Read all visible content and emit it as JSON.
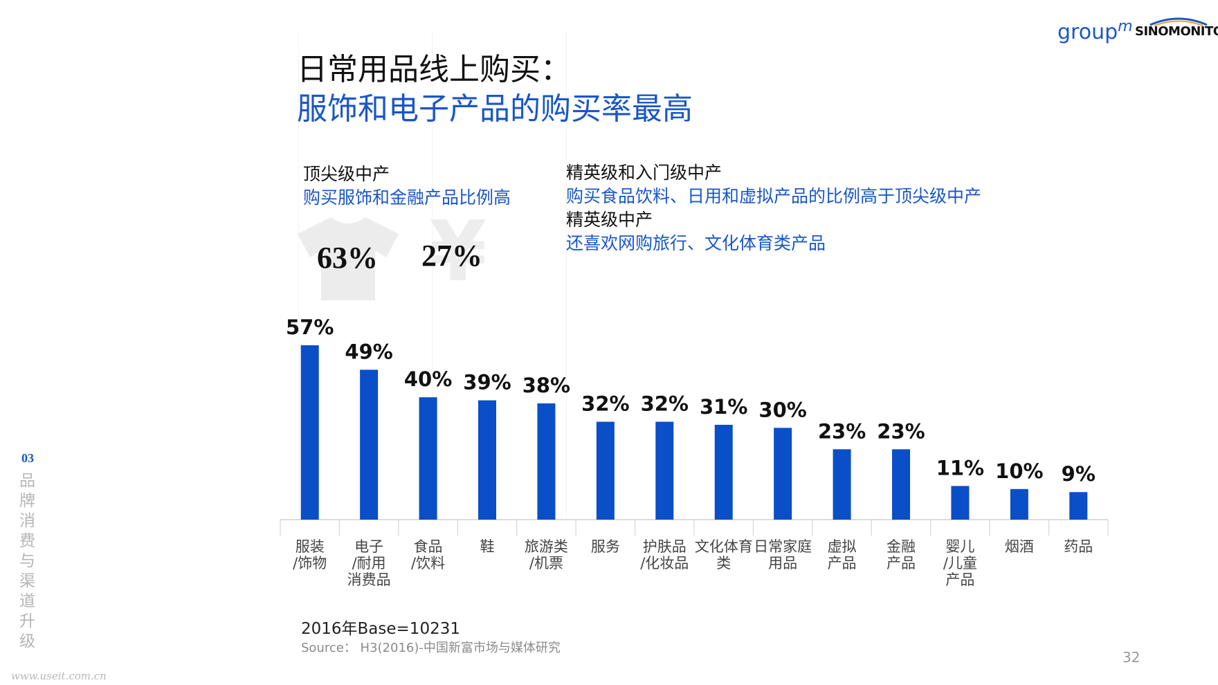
{
  "header": {
    "title_line1": "日常用品线上购买：",
    "title_line2": "服饰和电子产品的购买率最高"
  },
  "logos": {
    "groupm": "group",
    "groupm_m": "m",
    "sinomonitor": "SINOMONITOR"
  },
  "segments": {
    "left": {
      "heading": "顶尖级中产",
      "body": "购买服饰和金融产品比例高",
      "stats": [
        {
          "icon": "tshirt-icon",
          "value": "63%"
        },
        {
          "icon": "yen-icon",
          "value": "27%"
        }
      ]
    },
    "right": {
      "heading1": "精英级和入门级中产",
      "body1": "购买食品饮料、日用和虚拟产品的比例高于顶尖级中产",
      "heading2": "精英级中产",
      "body2": "还喜欢网购旅行、文化体育类产品"
    }
  },
  "colors": {
    "bar": "#0a4fc8",
    "accent_text": "#1a56c8"
  },
  "chart_data": {
    "type": "bar",
    "categories": [
      [
        "服装",
        "/饰物"
      ],
      [
        "电子",
        "/耐用",
        "消费品"
      ],
      [
        "食品",
        "/饮料"
      ],
      [
        "鞋"
      ],
      [
        "旅游类",
        "/机票"
      ],
      [
        "服务"
      ],
      [
        "护肤品",
        "/化妆品"
      ],
      [
        "文化体育",
        "类"
      ],
      [
        "日常家庭",
        "用品"
      ],
      [
        "虚拟",
        "产品"
      ],
      [
        "金融",
        "产品"
      ],
      [
        "婴儿",
        "/儿童",
        "产品"
      ],
      [
        "烟酒"
      ],
      [
        "药品"
      ]
    ],
    "values": [
      57,
      49,
      40,
      39,
      38,
      32,
      32,
      31,
      30,
      23,
      23,
      11,
      10,
      9
    ],
    "labels": [
      "57%",
      "49%",
      "40%",
      "39%",
      "38%",
      "32%",
      "32%",
      "31%",
      "30%",
      "23%",
      "23%",
      "11%",
      "10%",
      "9%"
    ],
    "ylim": [
      0,
      60
    ],
    "grid": false,
    "legend": "none"
  },
  "footer": {
    "base": "2016年Base=10231",
    "source": "Source： H3(2016)-中国新富市场与媒体研究",
    "page": "32",
    "watermark": "www.useit.com.cn"
  },
  "sidebar": {
    "section_number": "03",
    "section_title": "品牌消费与渠道升级"
  }
}
